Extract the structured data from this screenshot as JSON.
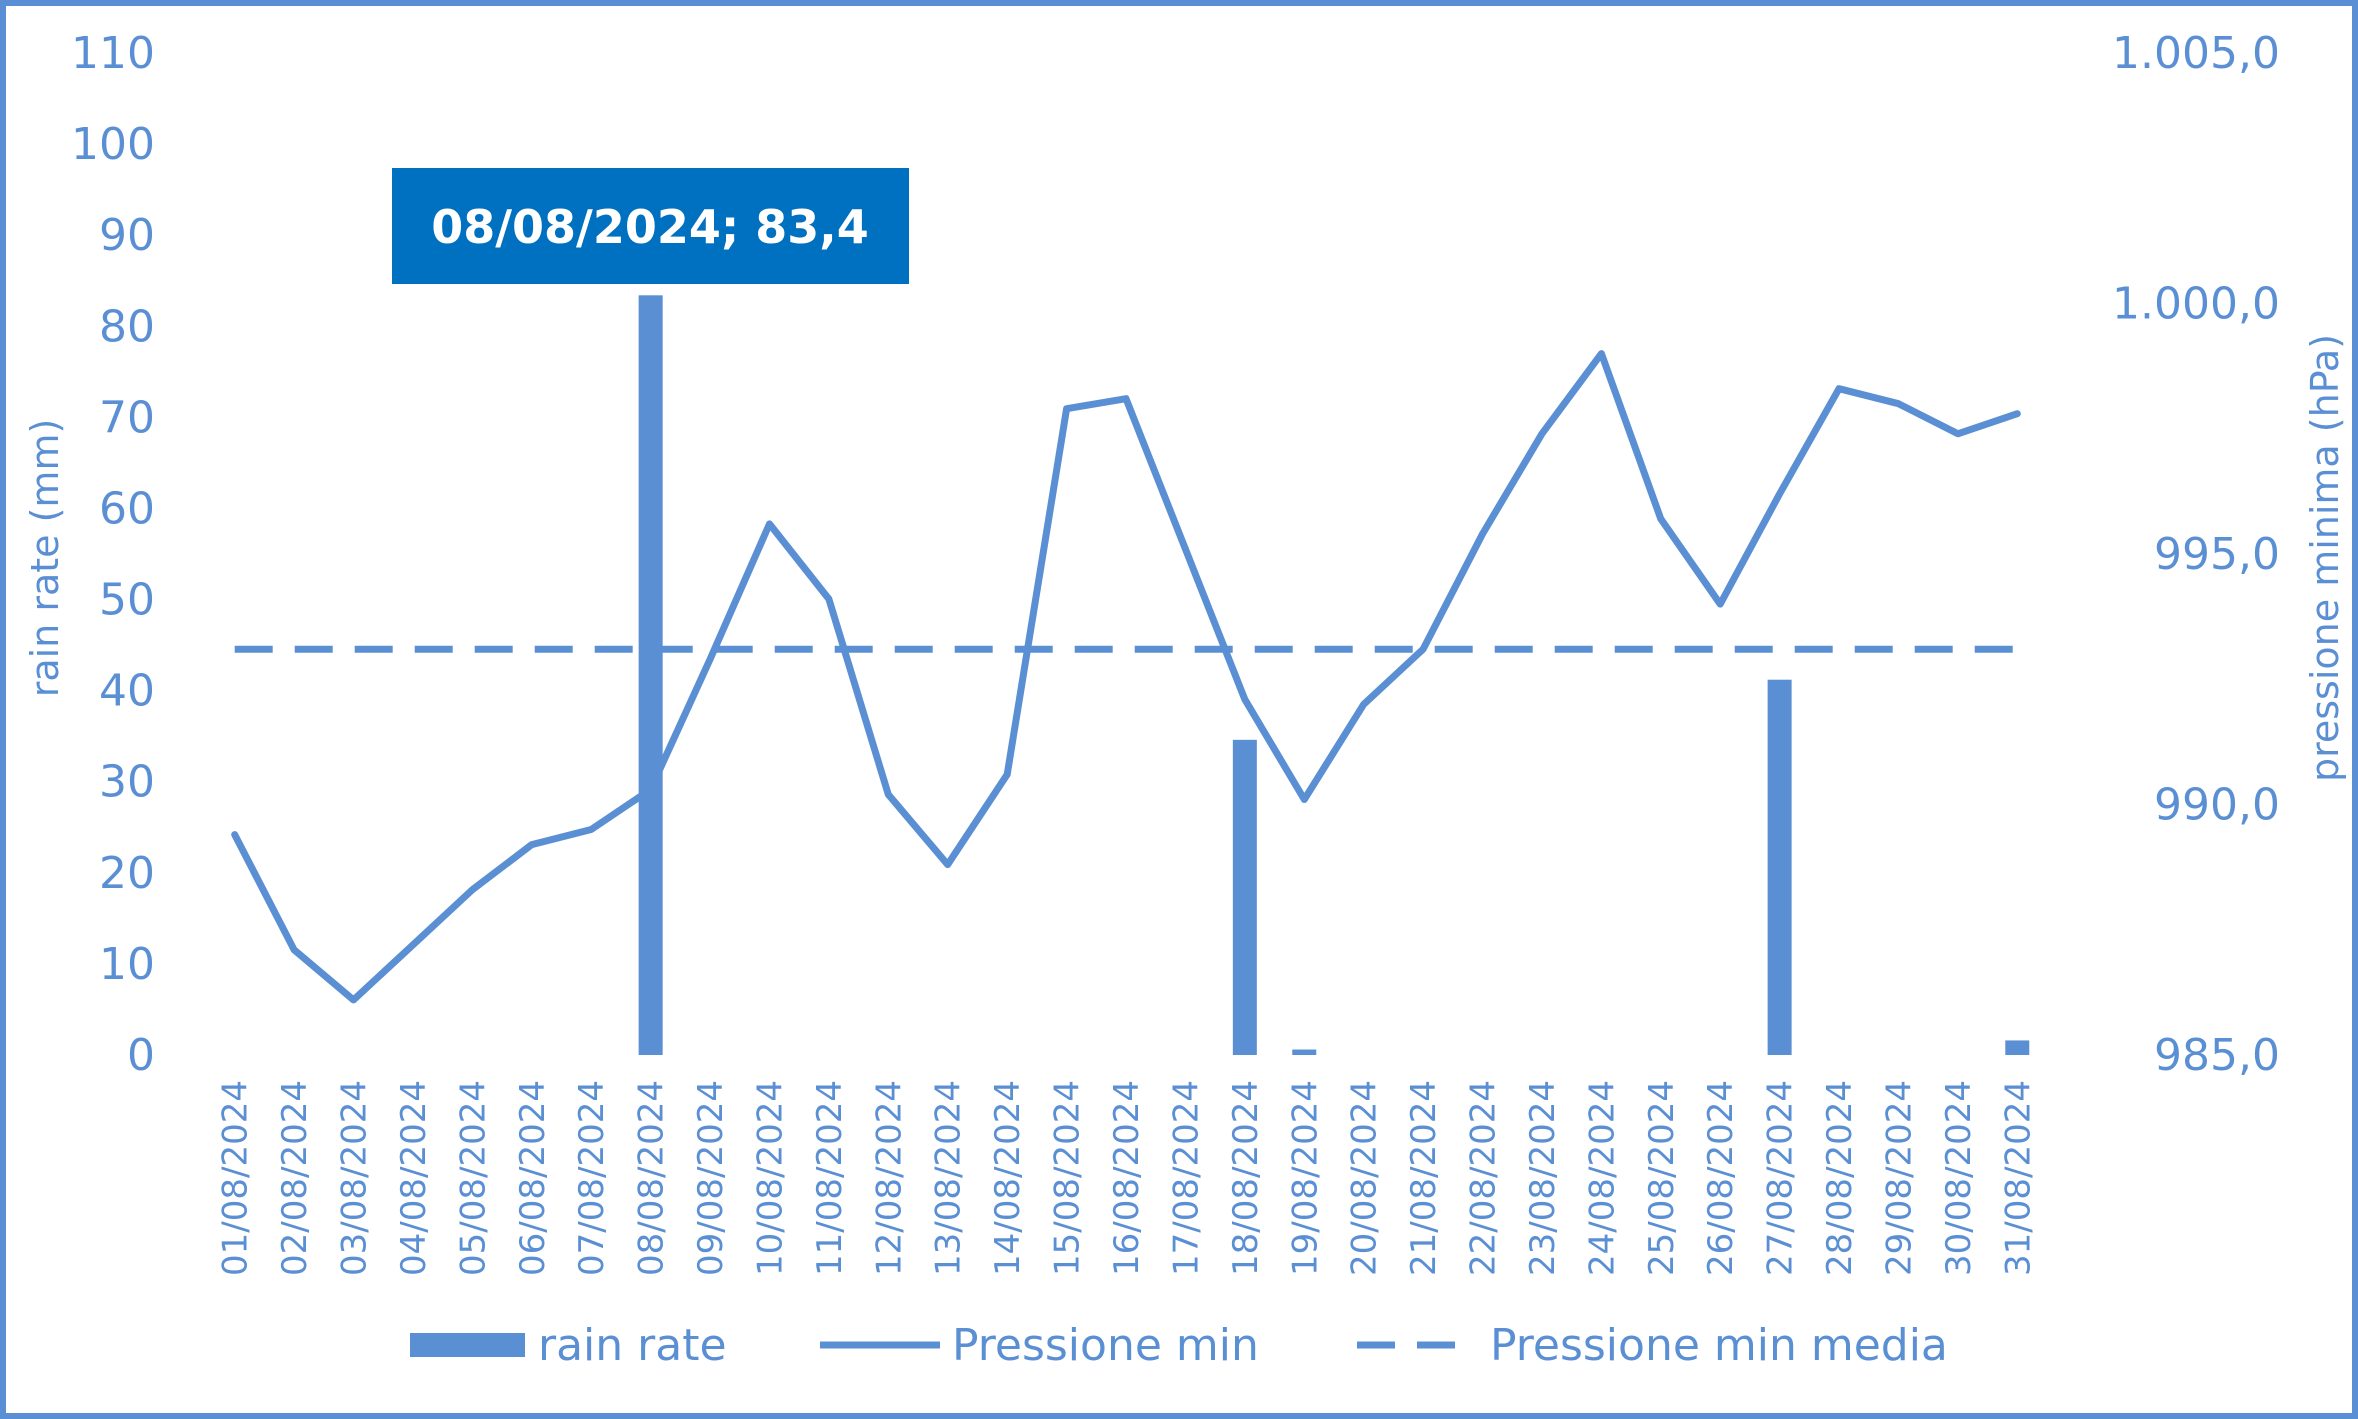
{
  "chart_data": {
    "type": "bar+line",
    "categories": [
      "01/08/2024",
      "02/08/2024",
      "03/08/2024",
      "04/08/2024",
      "05/08/2024",
      "06/08/2024",
      "07/08/2024",
      "08/08/2024",
      "09/08/2024",
      "10/08/2024",
      "11/08/2024",
      "12/08/2024",
      "13/08/2024",
      "14/08/2024",
      "15/08/2024",
      "16/08/2024",
      "17/08/2024",
      "18/08/2024",
      "19/08/2024",
      "20/08/2024",
      "21/08/2024",
      "22/08/2024",
      "23/08/2024",
      "24/08/2024",
      "25/08/2024",
      "26/08/2024",
      "27/08/2024",
      "28/08/2024",
      "29/08/2024",
      "30/08/2024",
      "31/08/2024"
    ],
    "series": [
      {
        "name": "rain rate",
        "type": "bar",
        "axis": "left",
        "values": [
          0,
          0,
          0,
          0,
          0,
          0,
          0,
          83.4,
          0,
          0,
          0,
          0,
          0,
          0,
          0,
          0,
          0,
          34.6,
          0.6,
          0,
          0,
          0,
          0,
          0,
          0,
          0,
          41.2,
          0,
          0,
          0,
          1.6
        ]
      },
      {
        "name": "Pressione min",
        "type": "line",
        "axis": "right",
        "values": [
          989.4,
          987.1,
          986.1,
          987.2,
          988.3,
          989.2,
          989.5,
          990.3,
          992.9,
          995.6,
          994.1,
          990.2,
          988.8,
          990.6,
          997.9,
          998.1,
          995.1,
          992.1,
          990.1,
          992.0,
          993.1,
          995.4,
          997.4,
          999.0,
          995.7,
          994.0,
          996.2,
          998.3,
          998.0,
          997.4,
          997.8
        ]
      },
      {
        "name": "Pressione min media",
        "type": "line-dashed",
        "axis": "right",
        "values": [
          993.1,
          993.1,
          993.1,
          993.1,
          993.1,
          993.1,
          993.1,
          993.1,
          993.1,
          993.1,
          993.1,
          993.1,
          993.1,
          993.1,
          993.1,
          993.1,
          993.1,
          993.1,
          993.1,
          993.1,
          993.1,
          993.1,
          993.1,
          993.1,
          993.1,
          993.1,
          993.1,
          993.1,
          993.1,
          993.1,
          993.1
        ]
      }
    ],
    "ylabel": "rain rate (mm)",
    "y2label": "pressione minima (hPa)",
    "ylim": [
      0,
      110
    ],
    "yticks": [
      "0",
      "10",
      "20",
      "30",
      "40",
      "50",
      "60",
      "70",
      "80",
      "90",
      "100",
      "110"
    ],
    "y2lim": [
      985,
      1005
    ],
    "y2ticks": [
      "985,0",
      "990,0",
      "995,0",
      "1.000,0",
      "1.005,0"
    ],
    "grid": false,
    "legend_position": "bottom",
    "annotation": {
      "text": "08/08/2024; 83,4",
      "category": "08/08/2024",
      "value": 83.4
    },
    "colors": {
      "series": "#5b8fd4",
      "annotation_bg": "#0070c0",
      "annotation_text": "#ffffff",
      "border": "#5a8fd6"
    }
  }
}
